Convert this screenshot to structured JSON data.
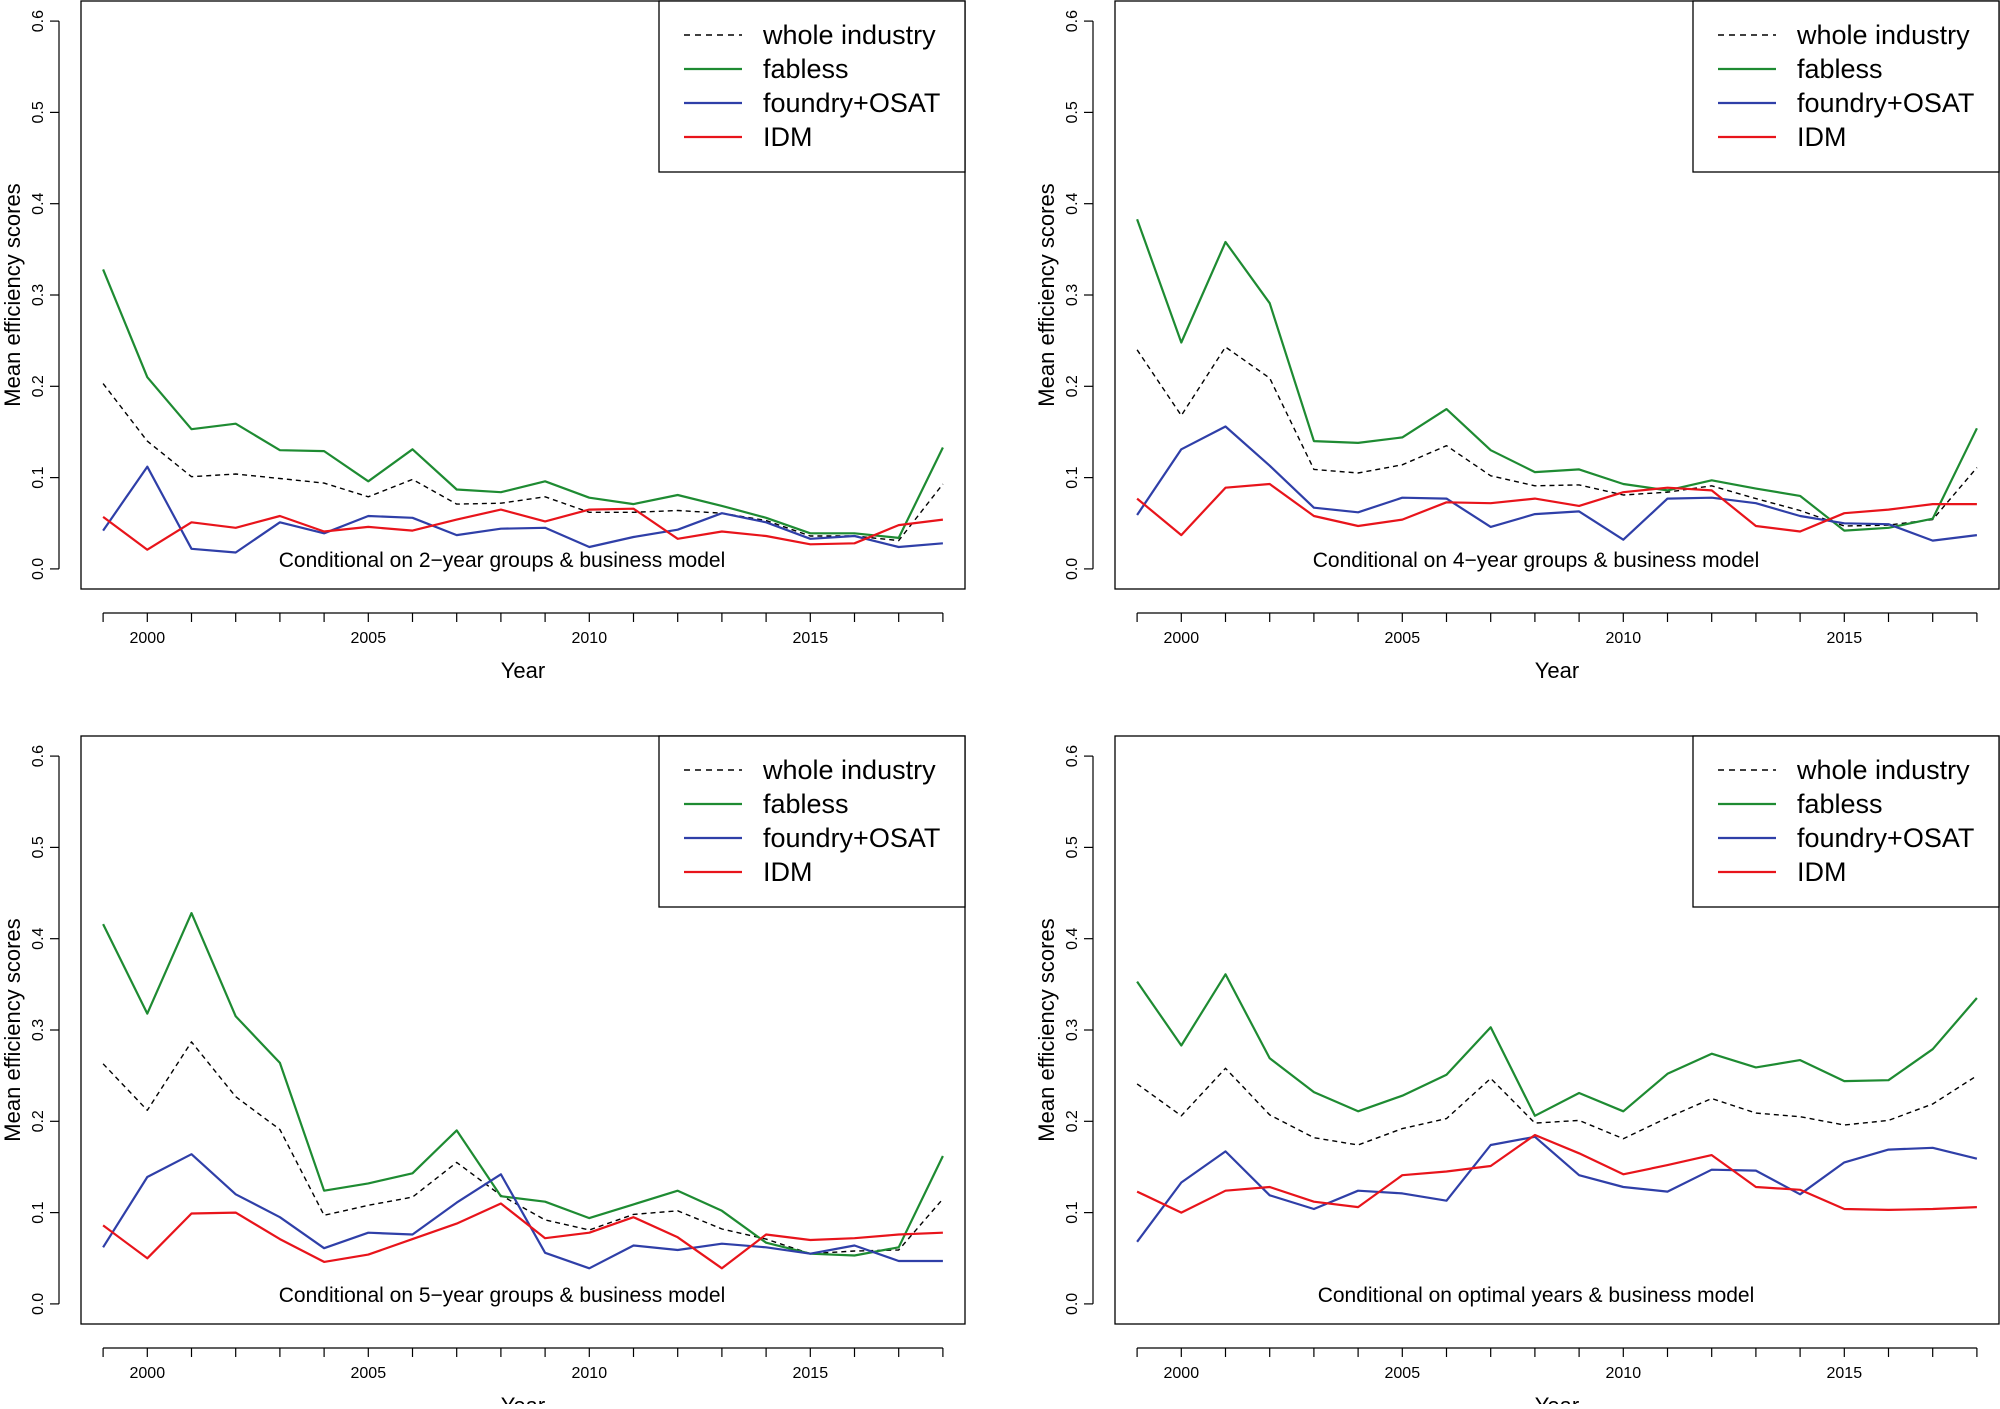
{
  "chart_data": [
    {
      "type": "line",
      "annotation": "Conditional on 2−year groups & business model",
      "xlabel": "Year",
      "ylabel": "Mean efficiency scores",
      "xlim": [
        1998.5,
        2018.5
      ],
      "ylim": [
        -0.022,
        0.622
      ],
      "xticks": [
        2000,
        2005,
        2010,
        2015
      ],
      "xtick_labels": [
        "2000",
        "2005",
        "2010",
        "2015"
      ],
      "yticks": [
        0,
        0.1,
        0.2,
        0.3,
        0.4,
        0.5,
        0.6
      ],
      "ytick_labels": [
        "0.0",
        "0.1",
        "0.2",
        "0.3",
        "0.4",
        "0.5",
        "0.6"
      ],
      "legend_position": "top-right",
      "x": [
        1999,
        2000,
        2001,
        2002,
        2003,
        2004,
        2005,
        2006,
        2007,
        2008,
        2009,
        2010,
        2011,
        2012,
        2013,
        2014,
        2015,
        2016,
        2017,
        2018
      ],
      "series": [
        {
          "name": "whole industry",
          "color": "#000000",
          "dash": true,
          "values": [
            0.203,
            0.14,
            0.101,
            0.104,
            0.099,
            0.094,
            0.079,
            0.098,
            0.071,
            0.072,
            0.079,
            0.062,
            0.062,
            0.064,
            0.061,
            0.053,
            0.036,
            0.036,
            0.031,
            0.093
          ]
        },
        {
          "name": "fabless",
          "color": "#1e8b32",
          "dash": false,
          "values": [
            0.328,
            0.21,
            0.153,
            0.159,
            0.13,
            0.129,
            0.096,
            0.131,
            0.087,
            0.084,
            0.096,
            0.078,
            0.071,
            0.081,
            0.069,
            0.056,
            0.039,
            0.039,
            0.034,
            0.133
          ]
        },
        {
          "name": "foundry+OSAT",
          "color": "#2f3fa8",
          "dash": false,
          "values": [
            0.042,
            0.112,
            0.022,
            0.018,
            0.051,
            0.039,
            0.058,
            0.056,
            0.037,
            0.044,
            0.045,
            0.024,
            0.035,
            0.043,
            0.061,
            0.051,
            0.033,
            0.036,
            0.024,
            0.028
          ]
        },
        {
          "name": "IDM",
          "color": "#e8141b",
          "dash": false,
          "values": [
            0.057,
            0.021,
            0.051,
            0.045,
            0.058,
            0.041,
            0.046,
            0.042,
            0.054,
            0.065,
            0.052,
            0.065,
            0.066,
            0.033,
            0.041,
            0.036,
            0.027,
            0.028,
            0.048,
            0.054
          ]
        }
      ]
    },
    {
      "type": "line",
      "annotation": "Conditional on 4−year groups & business model",
      "xlabel": "Year",
      "ylabel": "Mean efficiency scores",
      "xlim": [
        1998.5,
        2018.5
      ],
      "ylim": [
        -0.022,
        0.622
      ],
      "xticks": [
        2000,
        2005,
        2010,
        2015
      ],
      "xtick_labels": [
        "2000",
        "2005",
        "2010",
        "2015"
      ],
      "yticks": [
        0,
        0.1,
        0.2,
        0.3,
        0.4,
        0.5,
        0.6
      ],
      "ytick_labels": [
        "0.0",
        "0.1",
        "0.2",
        "0.3",
        "0.4",
        "0.5",
        "0.6"
      ],
      "legend_position": "top-right",
      "x": [
        1999,
        2000,
        2001,
        2002,
        2003,
        2004,
        2005,
        2006,
        2007,
        2008,
        2009,
        2010,
        2011,
        2012,
        2013,
        2014,
        2015,
        2016,
        2017,
        2018
      ],
      "series": [
        {
          "name": "whole industry",
          "color": "#000000",
          "dash": true,
          "values": [
            0.24,
            0.168,
            0.243,
            0.209,
            0.109,
            0.105,
            0.114,
            0.135,
            0.102,
            0.091,
            0.092,
            0.081,
            0.084,
            0.091,
            0.077,
            0.064,
            0.047,
            0.048,
            0.054,
            0.111
          ]
        },
        {
          "name": "fabless",
          "color": "#1e8b32",
          "dash": false,
          "values": [
            0.383,
            0.248,
            0.358,
            0.291,
            0.14,
            0.138,
            0.144,
            0.175,
            0.13,
            0.106,
            0.109,
            0.093,
            0.086,
            0.097,
            0.088,
            0.08,
            0.042,
            0.045,
            0.055,
            0.154
          ]
        },
        {
          "name": "foundry+OSAT",
          "color": "#2f3fa8",
          "dash": false,
          "values": [
            0.059,
            0.131,
            0.156,
            0.113,
            0.067,
            0.062,
            0.078,
            0.077,
            0.046,
            0.06,
            0.063,
            0.032,
            0.077,
            0.078,
            0.072,
            0.058,
            0.05,
            0.049,
            0.031,
            0.037
          ]
        },
        {
          "name": "IDM",
          "color": "#e8141b",
          "dash": false,
          "values": [
            0.077,
            0.037,
            0.089,
            0.093,
            0.058,
            0.047,
            0.054,
            0.073,
            0.072,
            0.077,
            0.069,
            0.084,
            0.089,
            0.086,
            0.047,
            0.041,
            0.061,
            0.065,
            0.071,
            0.071
          ]
        }
      ]
    },
    {
      "type": "line",
      "annotation": "Conditional on 5−year groups & business model",
      "xlabel": "Year",
      "ylabel": "Mean efficiency scores",
      "xlim": [
        1998.5,
        2018.5
      ],
      "ylim": [
        -0.022,
        0.622
      ],
      "xticks": [
        2000,
        2005,
        2010,
        2015
      ],
      "xtick_labels": [
        "2000",
        "2005",
        "2010",
        "2015"
      ],
      "yticks": [
        0,
        0.1,
        0.2,
        0.3,
        0.4,
        0.5,
        0.6
      ],
      "ytick_labels": [
        "0.0",
        "0.1",
        "0.2",
        "0.3",
        "0.4",
        "0.5",
        "0.6"
      ],
      "legend_position": "top-right",
      "x": [
        1999,
        2000,
        2001,
        2002,
        2003,
        2004,
        2005,
        2006,
        2007,
        2008,
        2009,
        2010,
        2011,
        2012,
        2013,
        2014,
        2015,
        2016,
        2017,
        2018
      ],
      "series": [
        {
          "name": "whole industry",
          "color": "#000000",
          "dash": true,
          "values": [
            0.263,
            0.212,
            0.287,
            0.227,
            0.191,
            0.097,
            0.108,
            0.117,
            0.155,
            0.119,
            0.092,
            0.081,
            0.098,
            0.102,
            0.082,
            0.071,
            0.055,
            0.058,
            0.059,
            0.115
          ]
        },
        {
          "name": "fabless",
          "color": "#1e8b32",
          "dash": false,
          "values": [
            0.416,
            0.318,
            0.428,
            0.315,
            0.264,
            0.124,
            0.132,
            0.143,
            0.19,
            0.118,
            0.112,
            0.094,
            0.109,
            0.124,
            0.102,
            0.067,
            0.055,
            0.053,
            0.062,
            0.162
          ]
        },
        {
          "name": "foundry+OSAT",
          "color": "#2f3fa8",
          "dash": false,
          "values": [
            0.062,
            0.139,
            0.164,
            0.12,
            0.095,
            0.061,
            0.078,
            0.076,
            0.111,
            0.142,
            0.056,
            0.039,
            0.064,
            0.059,
            0.066,
            0.062,
            0.055,
            0.064,
            0.047,
            0.047
          ]
        },
        {
          "name": "IDM",
          "color": "#e8141b",
          "dash": false,
          "values": [
            0.086,
            0.05,
            0.099,
            0.1,
            0.071,
            0.046,
            0.054,
            0.071,
            0.088,
            0.11,
            0.072,
            0.078,
            0.095,
            0.073,
            0.039,
            0.076,
            0.07,
            0.072,
            0.076,
            0.078
          ]
        }
      ]
    },
    {
      "type": "line",
      "annotation": "Conditional on optimal years & business model",
      "xlabel": "Year",
      "ylabel": "Mean efficiency scores",
      "xlim": [
        1998.5,
        2018.5
      ],
      "ylim": [
        -0.022,
        0.622
      ],
      "xticks": [
        2000,
        2005,
        2010,
        2015
      ],
      "xtick_labels": [
        "2000",
        "2005",
        "2010",
        "2015"
      ],
      "yticks": [
        0,
        0.1,
        0.2,
        0.3,
        0.4,
        0.5,
        0.6
      ],
      "ytick_labels": [
        "0.0",
        "0.1",
        "0.2",
        "0.3",
        "0.4",
        "0.5",
        "0.6"
      ],
      "legend_position": "top-right",
      "x": [
        1999,
        2000,
        2001,
        2002,
        2003,
        2004,
        2005,
        2006,
        2007,
        2008,
        2009,
        2010,
        2011,
        2012,
        2013,
        2014,
        2015,
        2016,
        2017,
        2018
      ],
      "series": [
        {
          "name": "whole industry",
          "color": "#000000",
          "dash": true,
          "values": [
            0.241,
            0.206,
            0.258,
            0.207,
            0.182,
            0.174,
            0.192,
            0.203,
            0.247,
            0.198,
            0.201,
            0.181,
            0.204,
            0.225,
            0.209,
            0.205,
            0.196,
            0.201,
            0.219,
            0.25
          ]
        },
        {
          "name": "fabless",
          "color": "#1e8b32",
          "dash": false,
          "values": [
            0.353,
            0.283,
            0.361,
            0.269,
            0.232,
            0.211,
            0.228,
            0.251,
            0.303,
            0.206,
            0.231,
            0.211,
            0.252,
            0.274,
            0.259,
            0.267,
            0.244,
            0.245,
            0.279,
            0.335
          ]
        },
        {
          "name": "foundry+OSAT",
          "color": "#2f3fa8",
          "dash": false,
          "values": [
            0.068,
            0.133,
            0.167,
            0.119,
            0.104,
            0.124,
            0.121,
            0.113,
            0.174,
            0.183,
            0.141,
            0.128,
            0.123,
            0.147,
            0.146,
            0.12,
            0.155,
            0.169,
            0.171,
            0.159
          ]
        },
        {
          "name": "IDM",
          "color": "#e8141b",
          "dash": false,
          "values": [
            0.123,
            0.1,
            0.124,
            0.128,
            0.112,
            0.106,
            0.141,
            0.145,
            0.151,
            0.185,
            0.165,
            0.142,
            0.152,
            0.163,
            0.128,
            0.125,
            0.104,
            0.103,
            0.104,
            0.106
          ]
        }
      ]
    }
  ]
}
